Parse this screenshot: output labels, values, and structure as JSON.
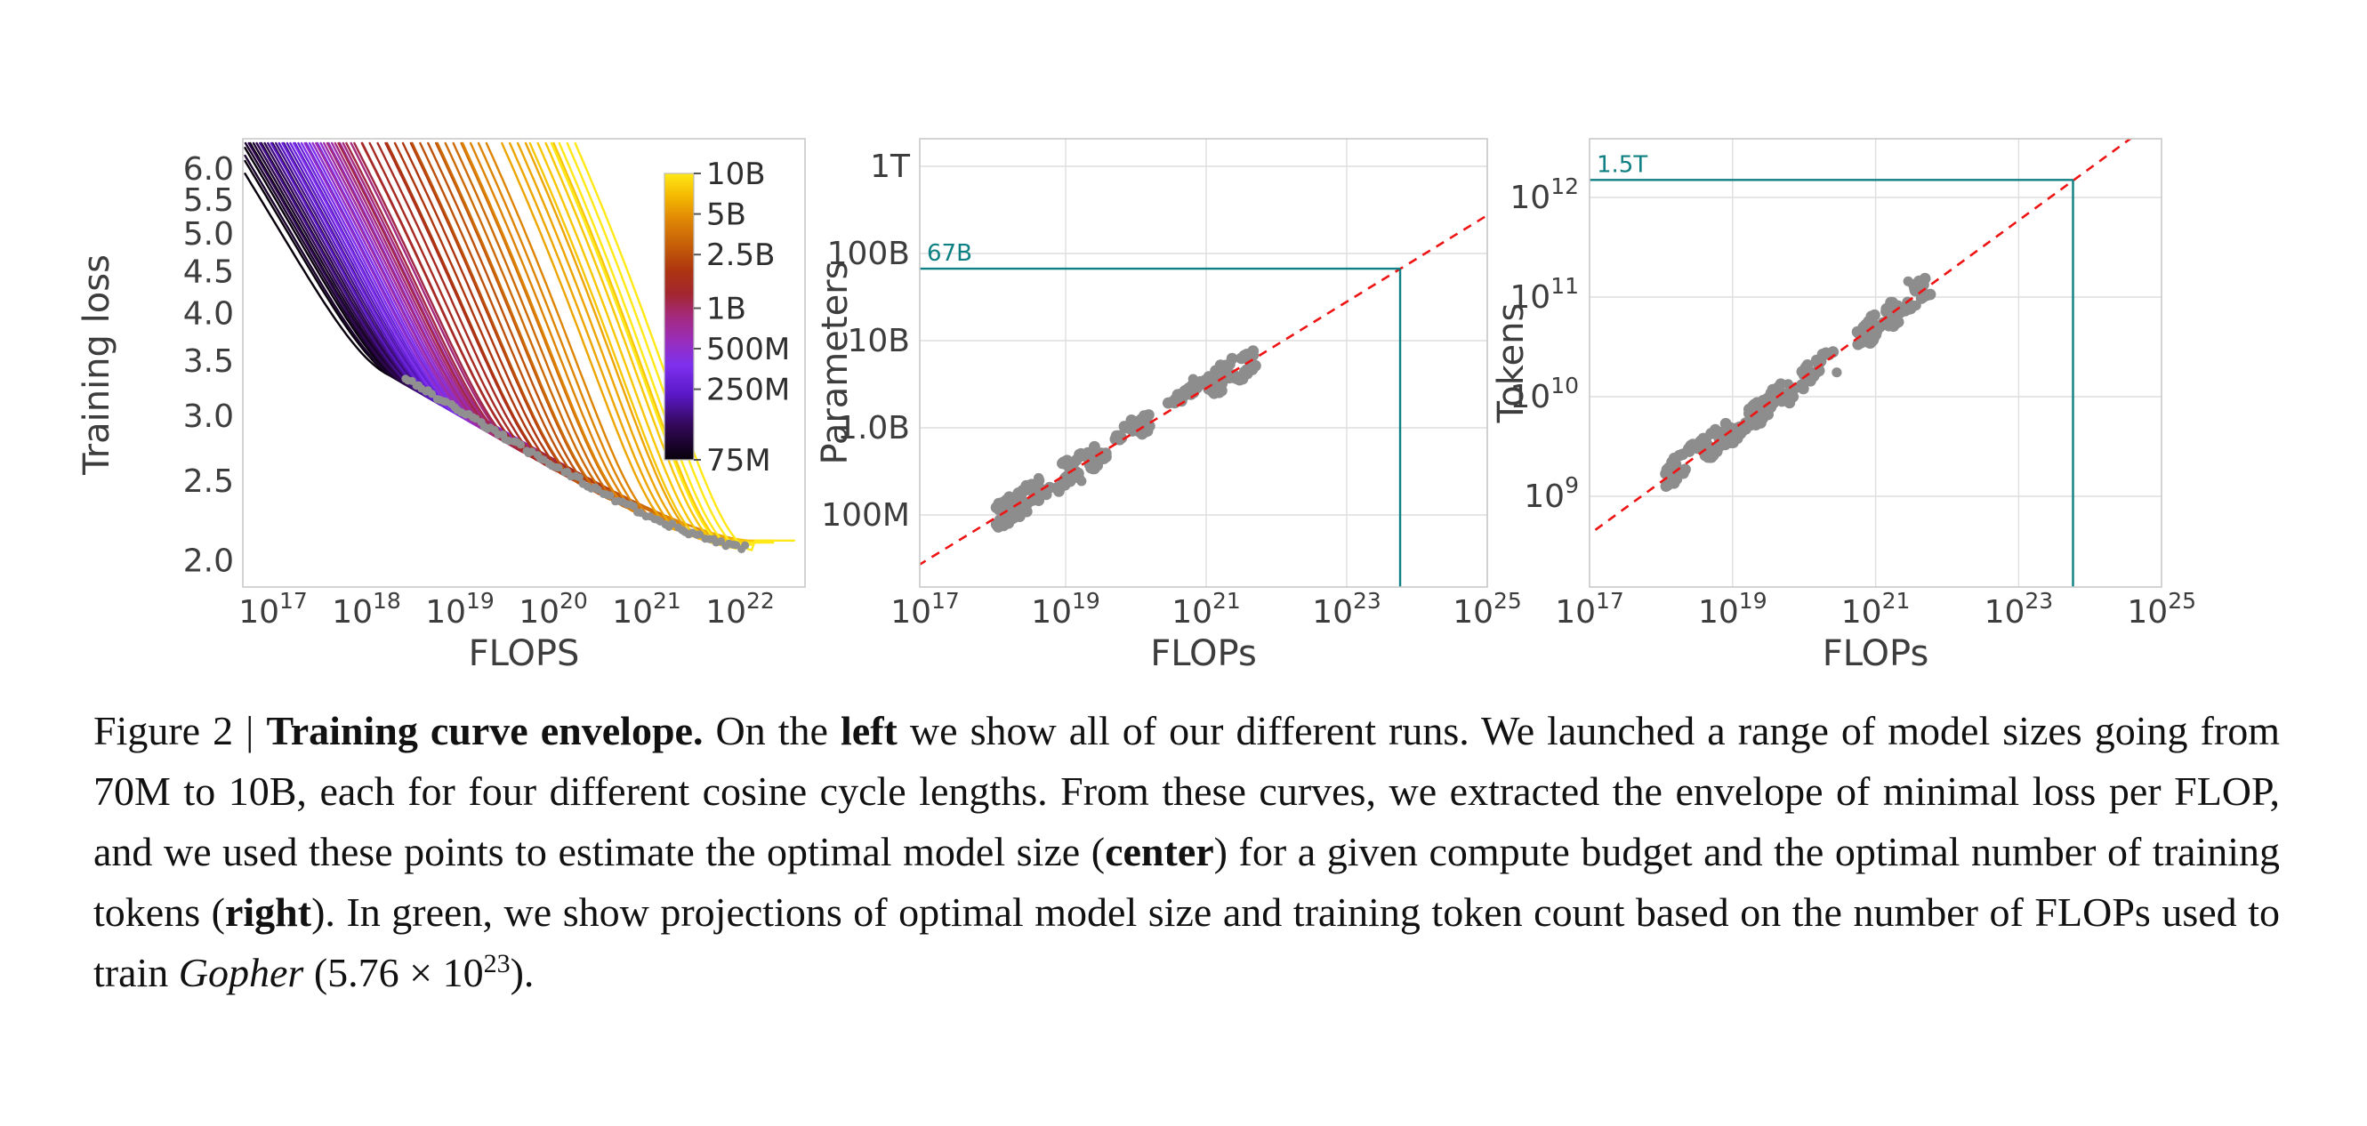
{
  "figure_label": "Figure 2",
  "caption": {
    "segments": [
      {
        "text": "Figure 2 | "
      },
      {
        "text": "Training curve envelope.",
        "bold": true
      },
      {
        "text": " On the "
      },
      {
        "text": "left",
        "bold": true
      },
      {
        "text": " we show all of our different runs. We launched a range of model sizes going from 70M to 10B, each for four different cosine cycle lengths. From these curves, we extracted the envelope of minimal loss per FLOP, and we used these points to estimate the optimal model size ("
      },
      {
        "text": "center",
        "bold": true
      },
      {
        "text": ") for a given compute budget and the optimal number of training tokens ("
      },
      {
        "text": "right",
        "bold": true
      },
      {
        "text": "). In green, we show projections of optimal model size and training token count based on the number of FLOPs used to train "
      },
      {
        "text": "Gopher",
        "italic": true
      },
      {
        "text": " (5.76 × 10"
      },
      {
        "text": "23",
        "sup": true
      },
      {
        "text": ")."
      }
    ]
  },
  "colors": {
    "teal_projection": "#0e8083",
    "red_trend": "#ee1414",
    "scatter_gray": "#8d8d8d",
    "envelope_gray": "#909090",
    "frame": "#c9c9c9",
    "grid": "#dedede",
    "tick_text": "#3d3d3d",
    "axis_label_text": "#3d3d3d"
  },
  "chart_data": [
    {
      "type": "line",
      "title": "",
      "xlabel": "FLOPS",
      "ylabel": "Training loss",
      "x_scale": "log10",
      "y_scale": "log10",
      "x_tick_exponents": [
        17,
        18,
        19,
        20,
        21,
        22
      ],
      "y_ticks": [
        6.0,
        5.5,
        5.0,
        4.5,
        4.0,
        3.5,
        3.0,
        2.5,
        2.0
      ],
      "xlim_log10": [
        16.68,
        22.7
      ],
      "ylim_loss": [
        1.86,
        6.22
      ],
      "grid": false,
      "series_family": {
        "description": "Training-loss curves for ~19 model sizes (70M to 10B parameters), four cosine cycle lengths each; curve color encodes model size",
        "n_sizes": 19,
        "cycles_per_size": 4,
        "size_range_labels": [
          "70M",
          "10B"
        ],
        "tangent_log10_flops": [
          18.4,
          18.52,
          18.64,
          18.76,
          18.88,
          19.0,
          19.12,
          19.24,
          19.36,
          19.48,
          19.6,
          19.85,
          20.12,
          20.39,
          20.66,
          20.93,
          21.35,
          21.65,
          21.88
        ],
        "cycle_shift_log10": 0.085,
        "cycle_end_offsets_log10": [
          0.05,
          0.19,
          0.33,
          0.47
        ],
        "entry_span_log10": 1.9,
        "top_loss": 6.45
      },
      "envelope": {
        "formula": "loss = 2.06 + 1.27*((22.1 - log10C)/3.7)^1.5",
        "log10_flops_range": [
          18.42,
          22.05
        ],
        "n_points": 90,
        "color": "#909090"
      },
      "colorbar": {
        "scale": "log",
        "labels": [
          {
            "label": "10B",
            "frac_from_top": 0.0
          },
          {
            "label": "5B",
            "frac_from_top": 0.1416
          },
          {
            "label": "2.5B",
            "frac_from_top": 0.2833
          },
          {
            "label": "1B",
            "frac_from_top": 0.4706
          },
          {
            "label": "500M",
            "frac_from_top": 0.6118
          },
          {
            "label": "250M",
            "frac_from_top": 0.7535
          },
          {
            "label": "75M",
            "frac_from_top": 1.0
          }
        ],
        "colormap_stops": [
          [
            0.0,
            "#08000a"
          ],
          [
            0.12,
            "#320857"
          ],
          [
            0.23,
            "#5b18c8"
          ],
          [
            0.33,
            "#7d30ee"
          ],
          [
            0.42,
            "#9a2db8"
          ],
          [
            0.5,
            "#a42a7e"
          ],
          [
            0.58,
            "#a3262f"
          ],
          [
            0.66,
            "#ad3410"
          ],
          [
            0.75,
            "#c55f08"
          ],
          [
            0.84,
            "#e08705"
          ],
          [
            0.92,
            "#f4b800"
          ],
          [
            1.0,
            "#ffe818"
          ]
        ]
      }
    },
    {
      "type": "scatter",
      "title": "",
      "xlabel": "FLOPs",
      "ylabel": "Parameters",
      "x_scale": "log10",
      "y_scale": "log10",
      "x_tick_exponents": [
        17,
        19,
        21,
        23,
        25
      ],
      "y_tick_labels": [
        "1T",
        "100B",
        "10B",
        "1.0B",
        "100M"
      ],
      "y_tick_log10": [
        12,
        11,
        10,
        9,
        8
      ],
      "grid": true,
      "points": {
        "n_clusters": 60,
        "log10_x_range": [
          18.0,
          21.65
        ],
        "band_offset_log10": 0.085,
        "noise_log10": 0.1,
        "color": "#8d8d8d",
        "seed": 7
      },
      "trend": {
        "style": "dashed",
        "color": "#ee1414",
        "log10_y_at_1e17": 7.47,
        "slope": 0.496
      },
      "projection": {
        "label": "67B",
        "value_log10": 10.826,
        "flops_log10": 23.76,
        "color": "#0e8083",
        "meaning": "optimal model size at Gopher compute 5.76e23 FLOPs"
      }
    },
    {
      "type": "scatter",
      "title": "",
      "xlabel": "FLOPs",
      "ylabel": "Tokens",
      "x_scale": "log10",
      "y_scale": "log10",
      "x_tick_exponents": [
        17,
        19,
        21,
        23,
        25
      ],
      "y_tick_exponents": [
        12,
        11,
        10,
        9
      ],
      "grid": true,
      "points": {
        "n_clusters": 60,
        "log10_x_range": [
          18.0,
          21.7
        ],
        "band_offset_log10": 0.075,
        "noise_log10": 0.09,
        "color": "#8d8d8d",
        "seed": 13
      },
      "trend": {
        "style": "dashed",
        "color": "#ee1414",
        "log10_y_at_1e17": 8.62,
        "slope": 0.525
      },
      "projection": {
        "label": "1.5T",
        "value_log10": 12.176,
        "flops_log10": 23.76,
        "color": "#0e8083",
        "meaning": "optimal training tokens at Gopher compute 5.76e23 FLOPs"
      }
    }
  ]
}
